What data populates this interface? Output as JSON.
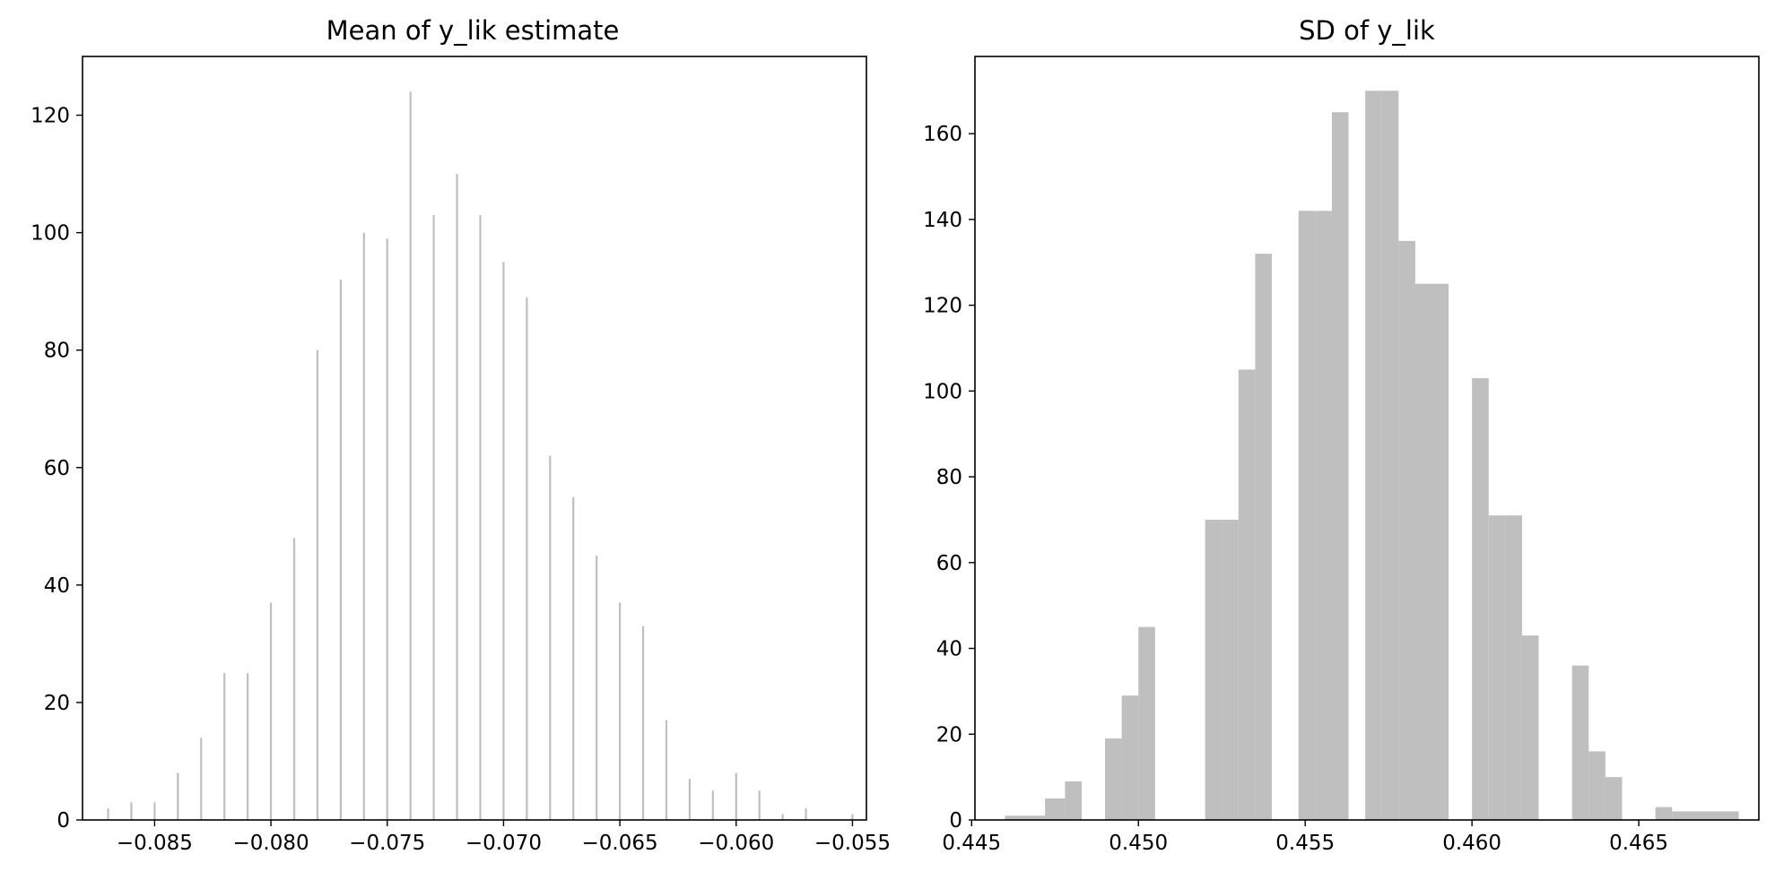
{
  "chart_data": [
    {
      "type": "bar",
      "title": "Mean of y_lik estimate",
      "xlabel": "",
      "ylabel": "",
      "bar_color": "#bfbfbf",
      "xlim": [
        -0.0881,
        -0.0544
      ],
      "ylim": [
        0,
        130
      ],
      "grid": false,
      "x_ticks": [
        -0.085,
        -0.08,
        -0.075,
        -0.07,
        -0.065,
        -0.06,
        -0.055
      ],
      "x_tick_labels": [
        "−0.085",
        "−0.080",
        "−0.075",
        "−0.070",
        "−0.065",
        "−0.060",
        "−0.055"
      ],
      "y_ticks": [
        0,
        20,
        40,
        60,
        80,
        100,
        120
      ],
      "y_tick_labels": [
        "0",
        "20",
        "40",
        "60",
        "80",
        "100",
        "120"
      ],
      "bars": [
        {
          "x": -0.087,
          "count": 2
        },
        {
          "x": -0.086,
          "count": 3
        },
        {
          "x": -0.085,
          "count": 3
        },
        {
          "x": -0.084,
          "count": 8
        },
        {
          "x": -0.083,
          "count": 14
        },
        {
          "x": -0.082,
          "count": 25
        },
        {
          "x": -0.081,
          "count": 25
        },
        {
          "x": -0.08,
          "count": 37
        },
        {
          "x": -0.079,
          "count": 48
        },
        {
          "x": -0.078,
          "count": 80
        },
        {
          "x": -0.077,
          "count": 92
        },
        {
          "x": -0.076,
          "count": 100
        },
        {
          "x": -0.075,
          "count": 99
        },
        {
          "x": -0.074,
          "count": 124
        },
        {
          "x": -0.073,
          "count": 103
        },
        {
          "x": -0.072,
          "count": 110
        },
        {
          "x": -0.071,
          "count": 103
        },
        {
          "x": -0.07,
          "count": 95
        },
        {
          "x": -0.069,
          "count": 89
        },
        {
          "x": -0.068,
          "count": 62
        },
        {
          "x": -0.067,
          "count": 55
        },
        {
          "x": -0.066,
          "count": 45
        },
        {
          "x": -0.065,
          "count": 37
        },
        {
          "x": -0.064,
          "count": 33
        },
        {
          "x": -0.063,
          "count": 17
        },
        {
          "x": -0.062,
          "count": 7
        },
        {
          "x": -0.061,
          "count": 5
        },
        {
          "x": -0.06,
          "count": 8
        },
        {
          "x": -0.059,
          "count": 5
        },
        {
          "x": -0.058,
          "count": 1
        },
        {
          "x": -0.057,
          "count": 2
        },
        {
          "x": -0.055,
          "count": 1
        }
      ]
    },
    {
      "type": "bar",
      "title": "SD of y_lik",
      "xlabel": "",
      "ylabel": "",
      "bar_color": "#bfbfbf",
      "xlim": [
        0.4451,
        0.4686
      ],
      "ylim": [
        0,
        178
      ],
      "grid": false,
      "x_ticks": [
        0.445,
        0.45,
        0.455,
        0.46,
        0.465
      ],
      "x_tick_labels": [
        "0.445",
        "0.450",
        "0.455",
        "0.460",
        "0.465"
      ],
      "y_ticks": [
        0,
        20,
        40,
        60,
        80,
        100,
        120,
        140,
        160
      ],
      "y_tick_labels": [
        "0",
        "20",
        "40",
        "60",
        "80",
        "100",
        "120",
        "140",
        "160"
      ],
      "bars": [
        {
          "x0": 0.446,
          "x1": 0.4472,
          "count": 1
        },
        {
          "x0": 0.4472,
          "x1": 0.4478,
          "count": 5
        },
        {
          "x0": 0.4478,
          "x1": 0.4483,
          "count": 9
        },
        {
          "x0": 0.449,
          "x1": 0.4495,
          "count": 19
        },
        {
          "x0": 0.4495,
          "x1": 0.45,
          "count": 29
        },
        {
          "x0": 0.45,
          "x1": 0.4505,
          "count": 45
        },
        {
          "x0": 0.452,
          "x1": 0.4525,
          "count": 70
        },
        {
          "x0": 0.4525,
          "x1": 0.453,
          "count": 70
        },
        {
          "x0": 0.453,
          "x1": 0.4535,
          "count": 105
        },
        {
          "x0": 0.4535,
          "x1": 0.454,
          "count": 132
        },
        {
          "x0": 0.4548,
          "x1": 0.4553,
          "count": 142
        },
        {
          "x0": 0.4553,
          "x1": 0.4558,
          "count": 142
        },
        {
          "x0": 0.4558,
          "x1": 0.4563,
          "count": 165
        },
        {
          "x0": 0.4568,
          "x1": 0.4573,
          "count": 170
        },
        {
          "x0": 0.4573,
          "x1": 0.4578,
          "count": 170
        },
        {
          "x0": 0.4578,
          "x1": 0.4583,
          "count": 135
        },
        {
          "x0": 0.4583,
          "x1": 0.4588,
          "count": 125
        },
        {
          "x0": 0.4588,
          "x1": 0.4593,
          "count": 125
        },
        {
          "x0": 0.46,
          "x1": 0.4605,
          "count": 103
        },
        {
          "x0": 0.4605,
          "x1": 0.461,
          "count": 71
        },
        {
          "x0": 0.461,
          "x1": 0.4615,
          "count": 71
        },
        {
          "x0": 0.4615,
          "x1": 0.462,
          "count": 43
        },
        {
          "x0": 0.463,
          "x1": 0.4635,
          "count": 36
        },
        {
          "x0": 0.4635,
          "x1": 0.464,
          "count": 16
        },
        {
          "x0": 0.464,
          "x1": 0.4645,
          "count": 10
        },
        {
          "x0": 0.4655,
          "x1": 0.466,
          "count": 3
        },
        {
          "x0": 0.466,
          "x1": 0.467,
          "count": 2
        },
        {
          "x0": 0.467,
          "x1": 0.468,
          "count": 2
        }
      ]
    }
  ]
}
